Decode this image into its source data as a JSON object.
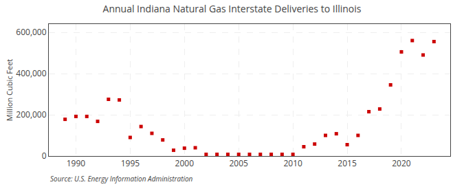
{
  "chart_data": {
    "type": "scatter",
    "title": "Annual Indiana Natural Gas Interstate Deliveries to Illinois",
    "ylabel": "Million Cubic Feet",
    "annotations": [
      "Source: U.S. Energy Information Administration"
    ],
    "x": [
      1989,
      1990,
      1991,
      1992,
      1993,
      1994,
      1995,
      1996,
      1997,
      1998,
      1999,
      2000,
      2001,
      2002,
      2003,
      2004,
      2005,
      2006,
      2007,
      2008,
      2009,
      2010,
      2011,
      2012,
      2013,
      2014,
      2015,
      2016,
      2017,
      2018,
      2019,
      2020,
      2021,
      2022,
      2023
    ],
    "values": [
      178000,
      192000,
      192000,
      168000,
      275000,
      272000,
      90000,
      143000,
      110000,
      78000,
      28000,
      38000,
      40000,
      8000,
      8000,
      8000,
      8000,
      8000,
      8000,
      8000,
      8000,
      8000,
      45000,
      58000,
      100000,
      108000,
      55000,
      100000,
      215000,
      228000,
      345000,
      505000,
      560000,
      490000,
      555000
    ],
    "color": "#cc0000",
    "marker": "square",
    "xlim": [
      1987.5,
      2024.5
    ],
    "xticks": [
      1990,
      1995,
      2000,
      2005,
      2010,
      2015,
      2020
    ],
    "ylim": [
      0,
      640000
    ],
    "yticks": [
      0,
      {
        "value": 200000,
        "label": "200,000"
      },
      {
        "value": 400000,
        "label": "400,000"
      },
      {
        "value": 600000,
        "label": "600,000"
      }
    ],
    "grid": true
  }
}
